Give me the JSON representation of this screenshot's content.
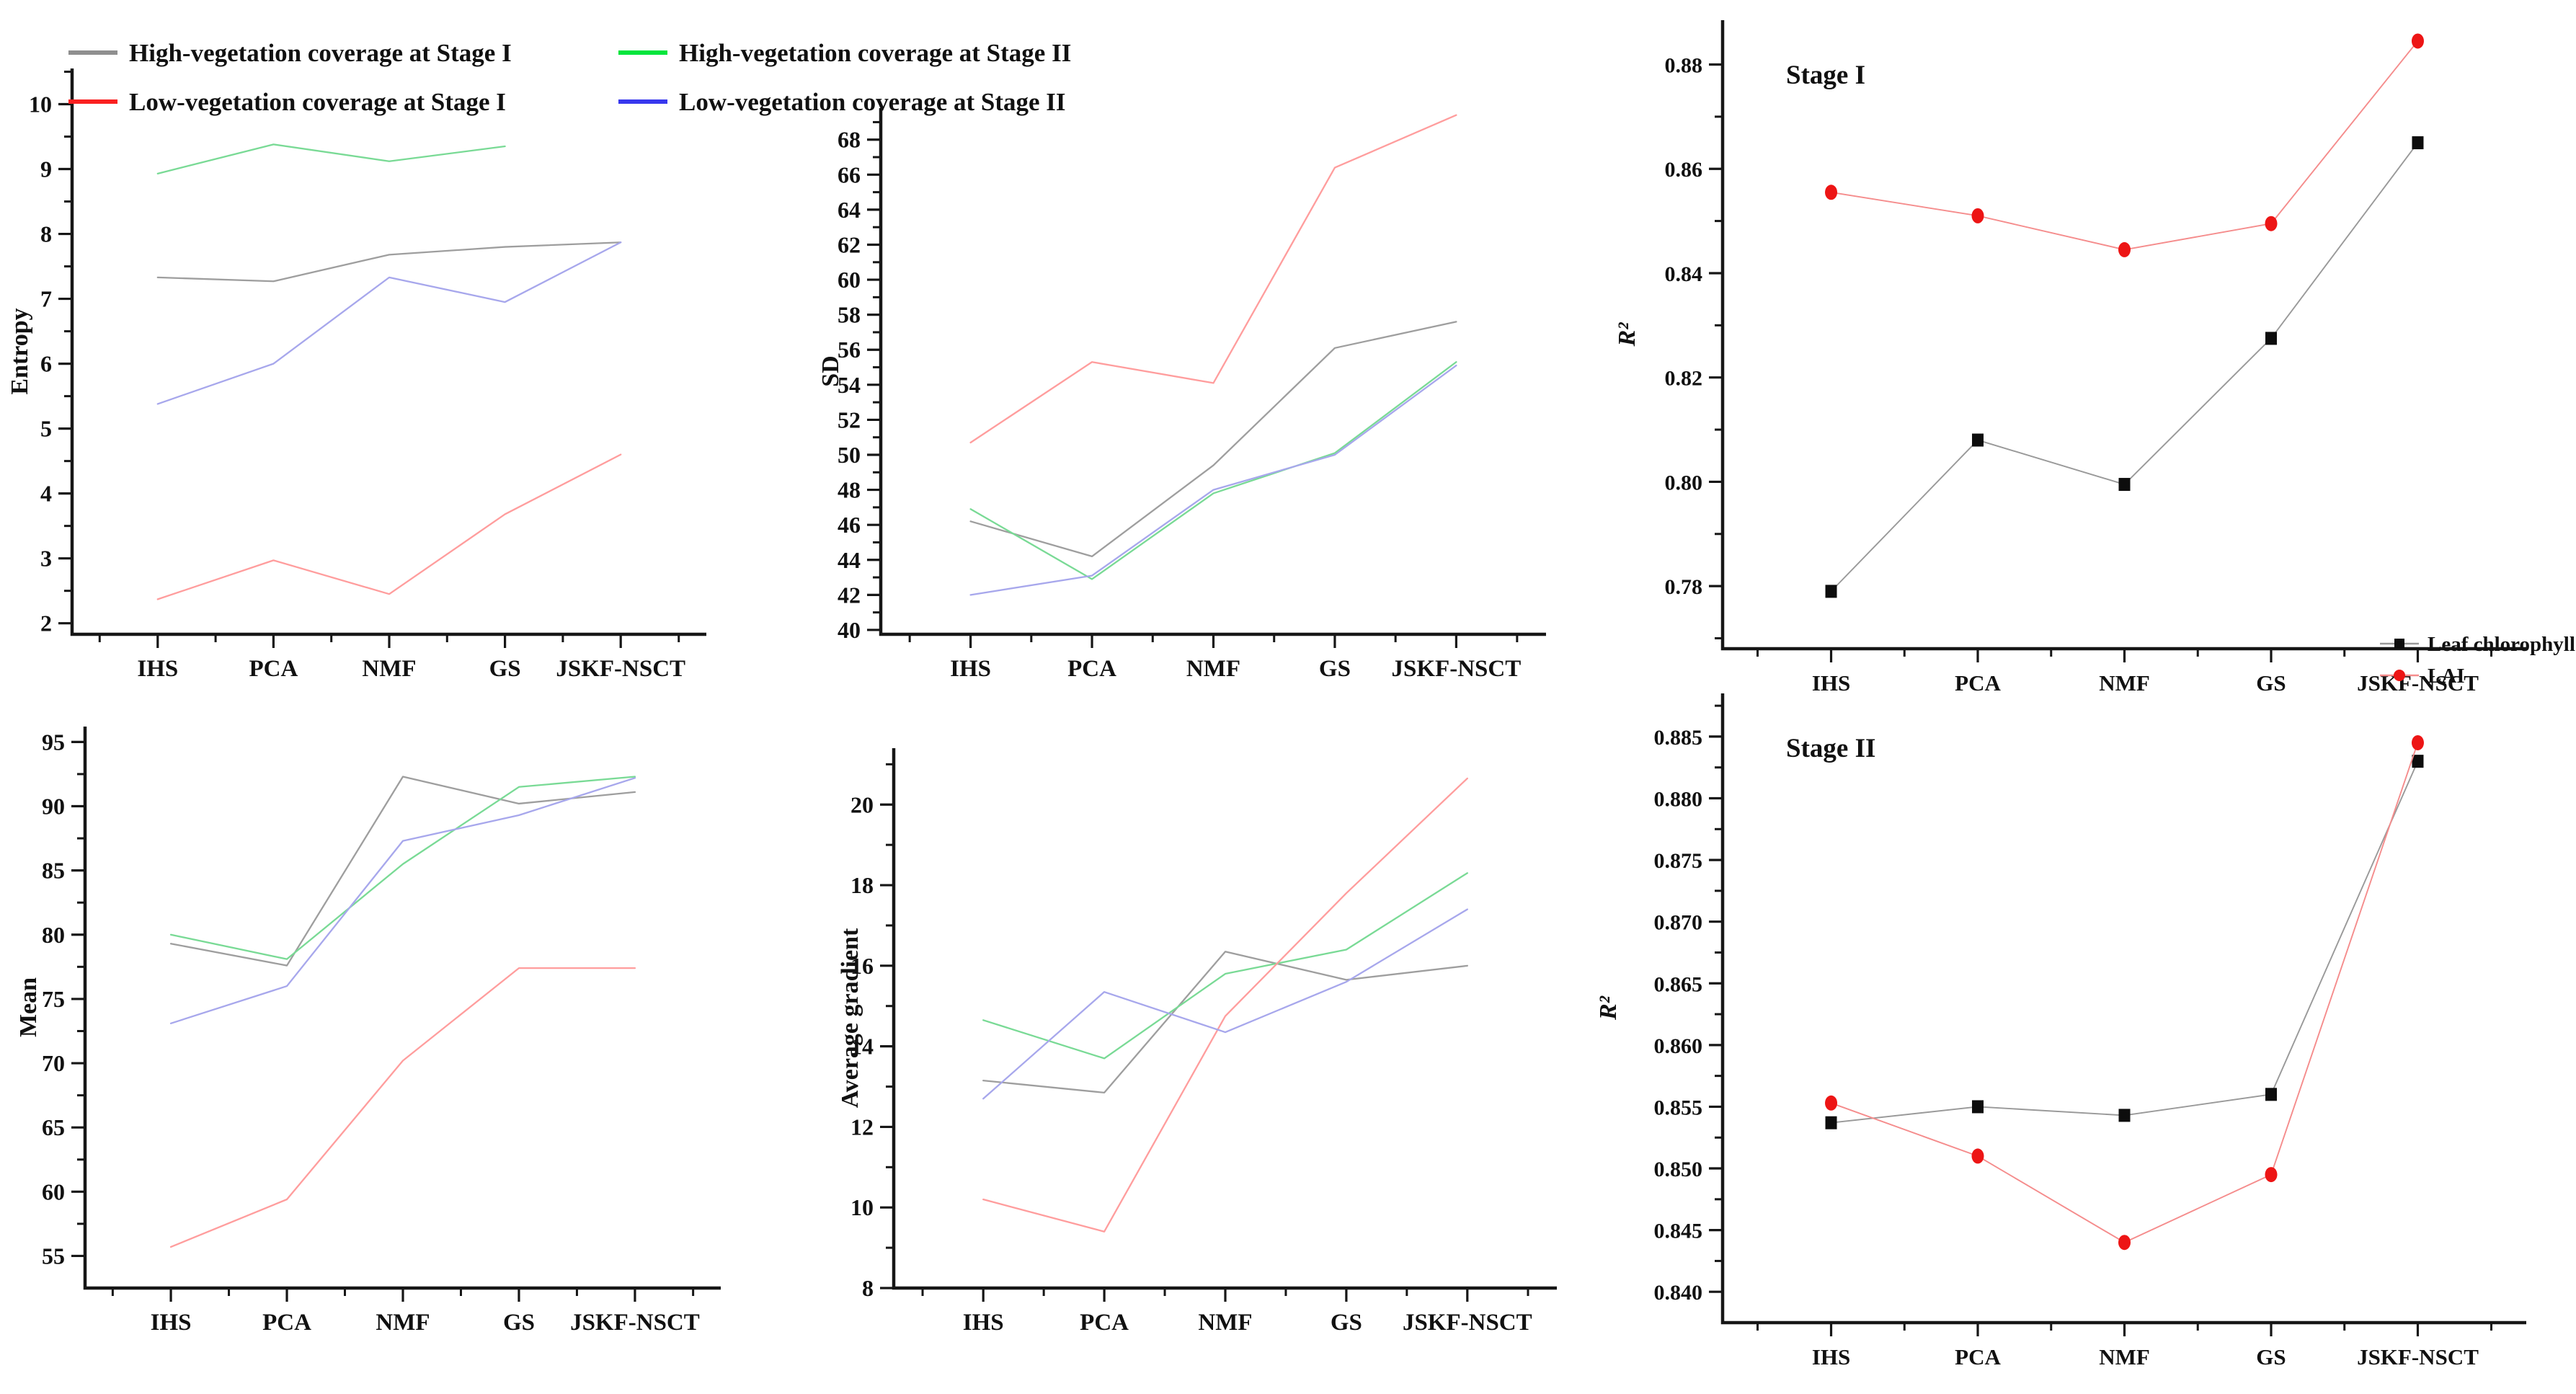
{
  "figure": {
    "background": "#ffffff"
  },
  "legend": {
    "position": "top-left",
    "entries": [
      {
        "label": "High-vegetation coverage at Stage I",
        "color": "#8f8f8f"
      },
      {
        "label": "Low-vegetation coverage at Stage I",
        "color": "#fa2020"
      },
      {
        "label": "High-vegetation coverage at Stage II",
        "color": "#00e53c"
      },
      {
        "label": "Low-vegetation coverage at Stage II",
        "color": "#3838ee"
      }
    ]
  },
  "stage_legend": {
    "position": "middle-right",
    "entries": [
      {
        "label": "Leaf chlorophyll",
        "marker": "square",
        "marker_color": "#0d0d0d",
        "line_color": "#999999"
      },
      {
        "label": "LAI",
        "marker": "circle",
        "marker_color": "#ed1515",
        "line_color": "#f58c8c"
      }
    ]
  },
  "chart_data": [
    {
      "id": "entropy",
      "type": "line",
      "title": "",
      "xlabel": "",
      "ylabel": "Entropy",
      "categories": [
        "IHS",
        "PCA",
        "NMF",
        "GS",
        "JSKF-NSCT"
      ],
      "yticks": [
        2,
        3,
        4,
        5,
        6,
        7,
        8,
        9,
        10
      ],
      "ydecimals": 0,
      "ylim": [
        1.83,
        10.55
      ],
      "grid": false,
      "series": [
        {
          "name": "High-vegetation coverage at Stage I",
          "color": "#9e9e9e",
          "values": [
            7.33,
            7.27,
            7.68,
            7.8,
            7.87
          ]
        },
        {
          "name": "High-vegetation coverage at Stage II",
          "color": "#79da95",
          "values": [
            8.93,
            9.38,
            9.12,
            9.35,
            null
          ]
        },
        {
          "name": "Low-vegetation coverage at Stage I",
          "color": "#ff9d9d",
          "values": [
            2.37,
            2.97,
            2.45,
            3.68,
            4.6
          ]
        },
        {
          "name": "Low-vegetation coverage at Stage II",
          "color": "#a7a7ec",
          "values": [
            5.38,
            6.0,
            7.33,
            6.95,
            7.87
          ]
        }
      ]
    },
    {
      "id": "sd",
      "type": "line",
      "title": "",
      "xlabel": "",
      "ylabel": "SD",
      "categories": [
        "IHS",
        "PCA",
        "NMF",
        "GS",
        "JSKF-NSCT"
      ],
      "yticks": [
        40,
        42,
        44,
        46,
        48,
        50,
        52,
        54,
        56,
        58,
        60,
        62,
        64,
        66,
        68
      ],
      "ydecimals": 0,
      "ylim": [
        39.75,
        69.8
      ],
      "grid": false,
      "series": [
        {
          "name": "High-vegetation coverage at Stage I",
          "color": "#9e9e9e",
          "values": [
            46.2,
            44.2,
            49.4,
            56.1,
            57.6
          ]
        },
        {
          "name": "High-vegetation coverage at Stage II",
          "color": "#79da95",
          "values": [
            46.9,
            42.9,
            47.8,
            50.1,
            55.3
          ]
        },
        {
          "name": "Low-vegetation coverage at Stage I",
          "color": "#ff9d9d",
          "values": [
            50.7,
            55.3,
            54.1,
            66.4,
            69.4
          ]
        },
        {
          "name": "Low-vegetation coverage at Stage II",
          "color": "#a7a7ec",
          "values": [
            42.0,
            43.1,
            48.0,
            50.0,
            55.1
          ]
        }
      ]
    },
    {
      "id": "stage1",
      "type": "line",
      "title": "Stage I",
      "xlabel": "",
      "ylabel": "R²",
      "categories": [
        "IHS",
        "PCA",
        "NMF",
        "GS",
        "JSKF-NSCT"
      ],
      "yticks": [
        0.78,
        0.8,
        0.82,
        0.84,
        0.86,
        0.88
      ],
      "ydecimals": 2,
      "ylim": [
        0.768,
        0.8885
      ],
      "grid": false,
      "series": [
        {
          "name": "Leaf chlorophyll",
          "color": "#999999",
          "marker": "square",
          "marker_color": "#0d0d0d",
          "values": [
            0.779,
            0.808,
            0.7995,
            0.8275,
            0.865
          ]
        },
        {
          "name": "LAI",
          "color": "#f58c8c",
          "marker": "circle",
          "marker_color": "#ed1515",
          "values": [
            0.8555,
            0.851,
            0.8445,
            0.8495,
            0.8845
          ]
        }
      ]
    },
    {
      "id": "mean",
      "type": "line",
      "title": "",
      "xlabel": "",
      "ylabel": "Mean",
      "categories": [
        "IHS",
        "PCA",
        "NMF",
        "GS",
        "JSKF-NSCT"
      ],
      "yticks": [
        55,
        60,
        65,
        70,
        75,
        80,
        85,
        90,
        95
      ],
      "ydecimals": 0,
      "ylim": [
        52.5,
        96.2
      ],
      "grid": false,
      "series": [
        {
          "name": "High-vegetation coverage at Stage I",
          "color": "#9e9e9e",
          "values": [
            79.3,
            77.6,
            92.3,
            90.2,
            91.1
          ]
        },
        {
          "name": "High-vegetation coverage at Stage II",
          "color": "#79da95",
          "values": [
            80.0,
            78.1,
            85.5,
            91.5,
            92.3
          ]
        },
        {
          "name": "Low-vegetation coverage at Stage I",
          "color": "#ff9d9d",
          "values": [
            55.7,
            59.4,
            70.2,
            77.4,
            77.4
          ]
        },
        {
          "name": "Low-vegetation coverage at Stage II",
          "color": "#a7a7ec",
          "values": [
            73.1,
            76.0,
            87.3,
            89.3,
            92.2
          ]
        }
      ]
    },
    {
      "id": "avg-gradient",
      "type": "line",
      "title": "",
      "xlabel": "",
      "ylabel": "Average gradient",
      "categories": [
        "IHS",
        "PCA",
        "NMF",
        "GS",
        "JSKF-NSCT"
      ],
      "yticks": [
        8,
        10,
        12,
        14,
        16,
        18,
        20
      ],
      "ydecimals": 0,
      "ylim": [
        8.0,
        21.4
      ],
      "grid": false,
      "series": [
        {
          "name": "High-vegetation coverage at Stage I",
          "color": "#9e9e9e",
          "values": [
            13.15,
            12.85,
            16.35,
            15.65,
            16.0
          ]
        },
        {
          "name": "High-vegetation coverage at Stage II",
          "color": "#79da95",
          "values": [
            14.65,
            13.7,
            15.8,
            16.4,
            18.3
          ]
        },
        {
          "name": "Low-vegetation coverage at Stage I",
          "color": "#ff9d9d",
          "values": [
            10.2,
            9.4,
            14.75,
            17.8,
            20.65
          ]
        },
        {
          "name": "Low-vegetation coverage at Stage II",
          "color": "#a7a7ec",
          "values": [
            12.7,
            15.35,
            14.35,
            15.6,
            17.4
          ]
        }
      ]
    },
    {
      "id": "stage2",
      "type": "line",
      "title": "Stage II",
      "xlabel": "",
      "ylabel": "R²",
      "categories": [
        "IHS",
        "PCA",
        "NMF",
        "GS",
        "JSKF-NSCT"
      ],
      "yticks": [
        0.84,
        0.845,
        0.85,
        0.855,
        0.86,
        0.865,
        0.87,
        0.875,
        0.88,
        0.885
      ],
      "ydecimals": 3,
      "ylim": [
        0.8375,
        0.8885
      ],
      "grid": false,
      "series": [
        {
          "name": "Leaf chlorophyll",
          "color": "#999999",
          "marker": "square",
          "marker_color": "#0d0d0d",
          "values": [
            0.8537,
            0.855,
            0.8543,
            0.856,
            0.883
          ]
        },
        {
          "name": "LAI",
          "color": "#f58c8c",
          "marker": "circle",
          "marker_color": "#ed1515",
          "values": [
            0.8553,
            0.851,
            0.844,
            0.8495,
            0.8845
          ]
        }
      ]
    }
  ]
}
